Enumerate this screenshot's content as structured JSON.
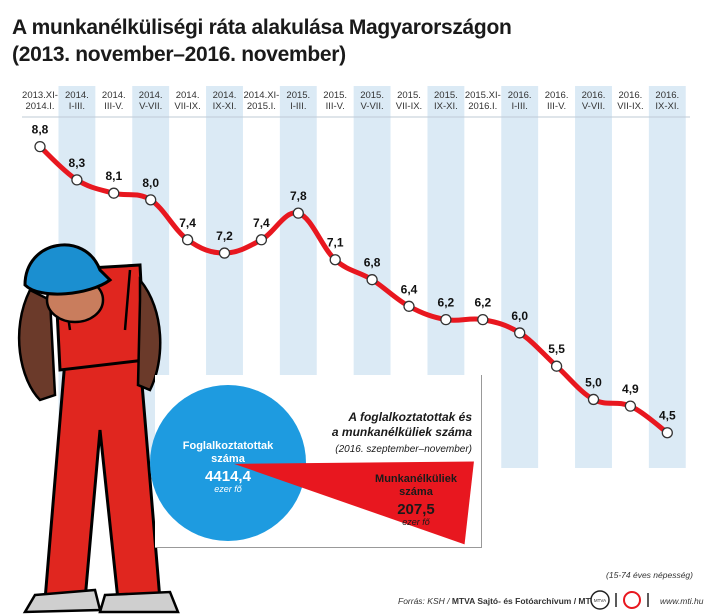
{
  "header": {
    "title_line1": "A munkanélküliségi ráta alakulása Magyarországon",
    "title_line2": "(2013. november–2016. november)"
  },
  "chart_data": {
    "type": "line",
    "categories": [
      [
        "2013.XI-",
        "2014.I."
      ],
      [
        "2014.",
        "I-III."
      ],
      [
        "2014.",
        "III-V."
      ],
      [
        "2014.",
        "V-VII."
      ],
      [
        "2014.",
        "VII-IX."
      ],
      [
        "2014.",
        "IX-XI."
      ],
      [
        "2014.XI-",
        "2015.I."
      ],
      [
        "2015.",
        "I-III."
      ],
      [
        "2015.",
        "III-V."
      ],
      [
        "2015.",
        "V-VII."
      ],
      [
        "2015.",
        "VII-IX."
      ],
      [
        "2015.",
        "IX-XI."
      ],
      [
        "2015.XI-",
        "2016.I."
      ],
      [
        "2016.",
        "I-III."
      ],
      [
        "2016.",
        "III-V."
      ],
      [
        "2016.",
        "V-VII."
      ],
      [
        "2016.",
        "VII-IX."
      ],
      [
        "2016.",
        "IX-XI."
      ]
    ],
    "values": [
      8.8,
      8.3,
      8.1,
      8.0,
      7.4,
      7.2,
      7.4,
      7.8,
      7.1,
      6.8,
      6.4,
      6.2,
      6.2,
      6.0,
      5.5,
      5.0,
      4.9,
      4.5
    ],
    "value_labels": [
      "8,8",
      "8,3",
      "8,1",
      "8,0",
      "7,4",
      "7,2",
      "7,4",
      "7,8",
      "7,1",
      "6,8",
      "6,4",
      "6,2",
      "6,2",
      "6,0",
      "5,5",
      "5,0",
      "4,9",
      "4,5"
    ],
    "ylim": [
      4.0,
      9.2
    ],
    "line_color": "#e8171f",
    "column_color": "#dbeaf5"
  },
  "pie": {
    "title_line1": "A foglalkoztatottak és",
    "title_line2": "a munkanélküliek száma",
    "subtitle": "(2016. szeptember–november)",
    "employed": {
      "label_line1": "Foglalkoztatottak",
      "label_line2": "száma",
      "value": 4414.4,
      "value_label": "4414,4",
      "unit": "ezer fő",
      "color": "#1e9be0"
    },
    "unemployed": {
      "label_line1": "Munkanélküliek",
      "label_line2": "száma",
      "value": 207.5,
      "value_label": "207,5",
      "unit": "ezer fő",
      "color": "#e8171f"
    }
  },
  "notes": {
    "population": "(15-74 éves népesség)",
    "source_prefix": "Forrás: KSH / ",
    "source_agency": "MTVA Sajtó- és Fotóarchívum / MTI",
    "logo_mtva": "MTVA",
    "website": "www.mti.hu"
  },
  "illustration": {
    "icon": "worker-in-overalls-icon",
    "helmet_color": "#1b8fd0",
    "overalls_color": "#e0261f"
  }
}
